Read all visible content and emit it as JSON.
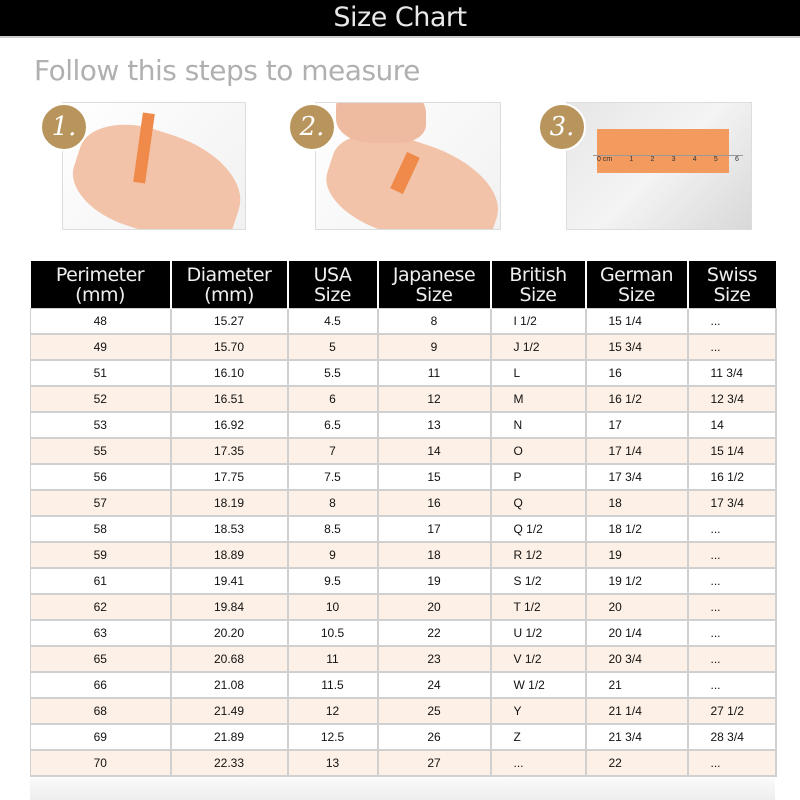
{
  "title": "Size Chart",
  "subtitle": "Follow this steps to measure",
  "steps": [
    {
      "number": "1."
    },
    {
      "number": "2."
    },
    {
      "number": "3.",
      "ruler_labels": [
        "0 cm",
        "1",
        "2",
        "3",
        "4",
        "5",
        "6"
      ]
    }
  ],
  "accent_color": "#b8955c",
  "row_alt_color": "#fdf0e6",
  "table": {
    "headers": [
      [
        "Perimeter",
        "(mm)"
      ],
      [
        "Diameter",
        "(mm)"
      ],
      [
        "USA",
        "Size"
      ],
      [
        "Japanese",
        "Size"
      ],
      [
        "British",
        "Size"
      ],
      [
        "German",
        "Size"
      ],
      [
        "Swiss",
        "Size"
      ]
    ],
    "rows": [
      [
        "48",
        "15.27",
        "4.5",
        "8",
        "I 1/2",
        "15 1/4",
        "..."
      ],
      [
        "49",
        "15.70",
        "5",
        "9",
        "J 1/2",
        "15 3/4",
        "..."
      ],
      [
        "51",
        "16.10",
        "5.5",
        "11",
        "L",
        "16",
        "11 3/4"
      ],
      [
        "52",
        "16.51",
        "6",
        "12",
        "M",
        "16 1/2",
        "12 3/4"
      ],
      [
        "53",
        "16.92",
        "6.5",
        "13",
        "N",
        "17",
        "14"
      ],
      [
        "55",
        "17.35",
        "7",
        "14",
        "O",
        "17 1/4",
        "15 1/4"
      ],
      [
        "56",
        "17.75",
        "7.5",
        "15",
        "P",
        "17 3/4",
        "16 1/2"
      ],
      [
        "57",
        "18.19",
        "8",
        "16",
        "Q",
        "18",
        "17 3/4"
      ],
      [
        "58",
        "18.53",
        "8.5",
        "17",
        "Q 1/2",
        "18 1/2",
        "..."
      ],
      [
        "59",
        "18.89",
        "9",
        "18",
        "R 1/2",
        "19",
        "..."
      ],
      [
        "61",
        "19.41",
        "9.5",
        "19",
        "S 1/2",
        "19 1/2",
        "..."
      ],
      [
        "62",
        "19.84",
        "10",
        "20",
        "T 1/2",
        "20",
        "..."
      ],
      [
        "63",
        "20.20",
        "10.5",
        "22",
        "U 1/2",
        "20 1/4",
        "..."
      ],
      [
        "65",
        "20.68",
        "11",
        "23",
        "V 1/2",
        "20 3/4",
        "..."
      ],
      [
        "66",
        "21.08",
        "11.5",
        "24",
        "W 1/2",
        "21",
        "..."
      ],
      [
        "68",
        "21.49",
        "12",
        "25",
        "Y",
        "21 1/4",
        "27 1/2"
      ],
      [
        "69",
        "21.89",
        "12.5",
        "26",
        "Z",
        "21 3/4",
        "28 3/4"
      ],
      [
        "70",
        "22.33",
        "13",
        "27",
        "...",
        "22",
        "..."
      ]
    ]
  }
}
